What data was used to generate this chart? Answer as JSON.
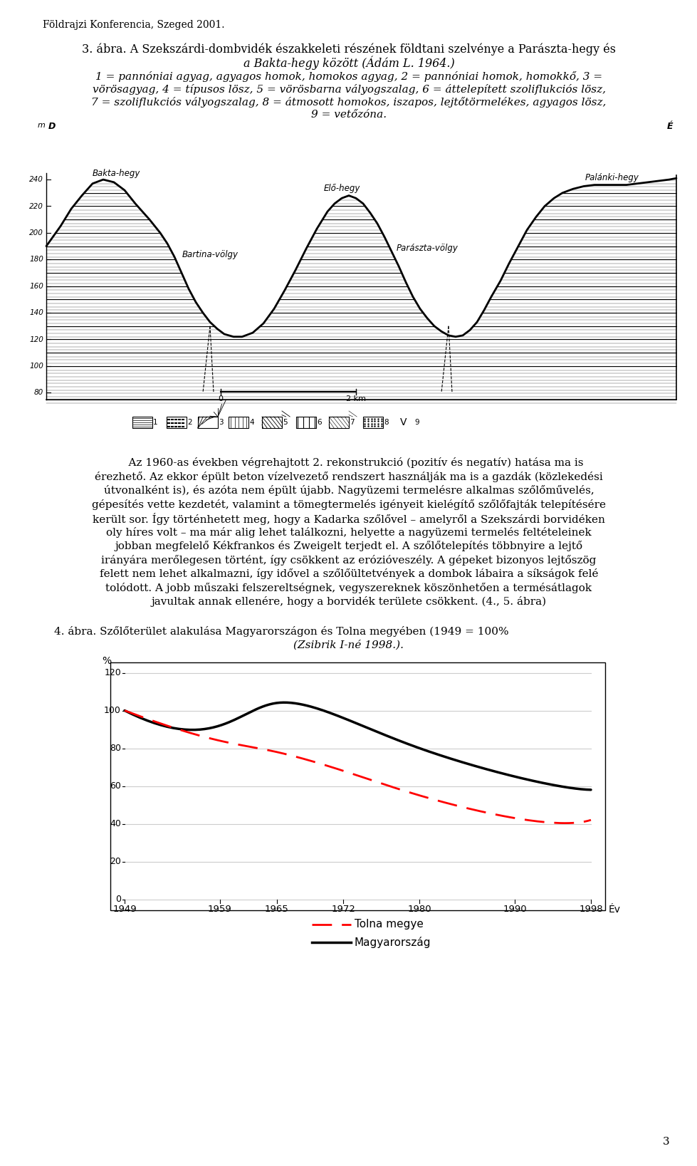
{
  "page_header": "Földrajzi Konferencia, Szeged 2001.",
  "page_number": "3",
  "fig3_title_line1": "3. ábra. A Szekszárdi-dombvidék északkeleti részének földtani szelvénye a Parászta-hegy és",
  "fig3_title_line2": "a Bakta-hegy között (Ádám L. 1964.)",
  "fig3_caption_lines": [
    "1 = pannóniai agyag, agyagos homok, homokos agyag, 2 = pannóniai homok, homokkő, 3 =",
    "vörösagyag, 4 = típusos lösz, 5 = vörösbarna vályogszalag, 6 = áttelepített szoliflukciós lösz,",
    "7 = szoliflukciós vályogszalag, 8 = átmosott homokos, iszapos, lejtőtörmelékes, agyagos lösz,",
    "9 = vetőzóna."
  ],
  "text_para_lines": [
    "    Az 1960-as években végrehajtott 2. rekonstrukció (pozitív és negatív) hatása ma is",
    "érezhető. Az ekkor épült beton vízelvezető rendszert használják ma is a gazdák (közlekedési",
    "útvonalként is), és azóta nem épült újabb. Nagyüzemi termelésre alkalmas szőlőművelés,",
    "gépesítés vette kezdetét, valamint a tömegtermelés igényeit kielégítő szőlőfajták telepítésére",
    "került sor. Így történhetett meg, hogy a Kadarka szőlővel – amelyről a Szekszárdi borvidéken",
    "oly híres volt – ma már alig lehet találkozni, helyette a nagyüzemi termelés feltételeinek",
    "jobban megfelelő Kékfrankos és Zweigelt terjedt el. A szőlőtelepítés többnyire a lejtő",
    "irányára merőlegesen történt, így csökkent az erózióveszély. A gépeket bizonyos lejtőszög",
    "felett nem lehet alkalmazni, így idővel a szőlőültetvények a dombok lábaira a síkságok felé",
    "tolódott. A jobb műszaki felszereltségnek, vegyszereknek köszönhetően a termésátlagok",
    "javultak annak ellenére, hogy a borvidék területe csökkent. (4., 5. ábra)"
  ],
  "fig4_title_line1": "4. ábra. Szőlőterület alakulása Magyarországon és Tolna megyében (1949 = 100%",
  "fig4_title_line2": "(Zsibrik I-né 1998.).",
  "magyarorszag_x": [
    1949,
    1959,
    1965,
    1972,
    1980,
    1990,
    1998
  ],
  "magyarorszag_y": [
    100,
    92,
    104,
    96,
    80,
    65,
    58
  ],
  "tolna_x": [
    1949,
    1959,
    1965,
    1972,
    1980,
    1990,
    1998
  ],
  "tolna_y": [
    100,
    84,
    78,
    68,
    55,
    43,
    42
  ],
  "xlabel": "Év",
  "ylabel": "%",
  "ylim": [
    0,
    120
  ],
  "yticks": [
    0,
    20,
    40,
    60,
    80,
    100,
    120
  ],
  "xtick_labels": [
    "1949",
    "1959",
    "1965",
    "1972",
    "1980",
    "1990",
    "1998"
  ],
  "legend_tolna": "Tolna megye",
  "legend_mag": "Magyarország",
  "background_color": "#ffffff",
  "text_color": "#000000",
  "cs_elev_labels": [
    "240",
    "220",
    "200",
    "180",
    "160",
    "140",
    "120",
    "100",
    "80"
  ],
  "cs_elev_values": [
    240,
    220,
    200,
    180,
    160,
    140,
    120,
    100,
    80
  ],
  "location_labels": [
    "Bakta-hegy",
    "Elő-hegy",
    "Palánki-hegy",
    "Bartina-völgy",
    "Parászta-völgy"
  ],
  "scale_label_0": "0",
  "scale_label_2km": "2 km"
}
